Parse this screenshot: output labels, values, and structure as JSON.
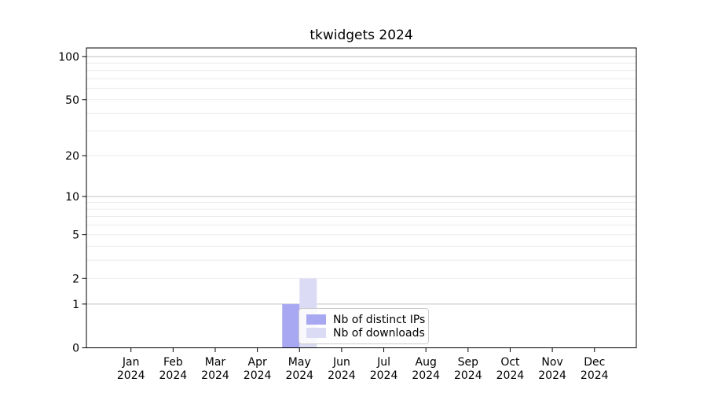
{
  "chart_data": {
    "type": "bar",
    "title": "tkwidgets 2024",
    "categories": [
      "Jan 2024",
      "Feb 2024",
      "Mar 2024",
      "Apr 2024",
      "May 2024",
      "Jun 2024",
      "Jul 2024",
      "Aug 2024",
      "Sep 2024",
      "Oct 2024",
      "Nov 2024",
      "Dec 2024"
    ],
    "series": [
      {
        "name": "Nb of distinct IPs",
        "color": "#a8a8f2",
        "values": [
          0,
          0,
          0,
          0,
          1,
          0,
          0,
          0,
          0,
          0,
          0,
          0
        ]
      },
      {
        "name": "Nb of downloads",
        "color": "#dbdbf6",
        "values": [
          0,
          0,
          0,
          0,
          2,
          0,
          0,
          0,
          0,
          0,
          0,
          0
        ]
      }
    ],
    "xlabel": "",
    "ylabel": "",
    "y_ticks": [
      0,
      1,
      2,
      5,
      10,
      20,
      50,
      100
    ],
    "y_scale": "log1p",
    "ylim": [
      0,
      115
    ],
    "grid": "horizontal",
    "grid_minor_values": [
      2,
      3,
      4,
      5,
      6,
      7,
      8,
      9,
      20,
      30,
      40,
      50,
      60,
      70,
      80,
      90
    ],
    "grid_major_values": [
      1,
      10,
      100
    ],
    "legend_position": "lower-center-inside"
  },
  "colors": {
    "grid_major": "#c0c0c0",
    "grid_minor": "#ebebeb",
    "spine": "#000000",
    "tick_text": "#000000",
    "legend_border": "#cccccc"
  }
}
